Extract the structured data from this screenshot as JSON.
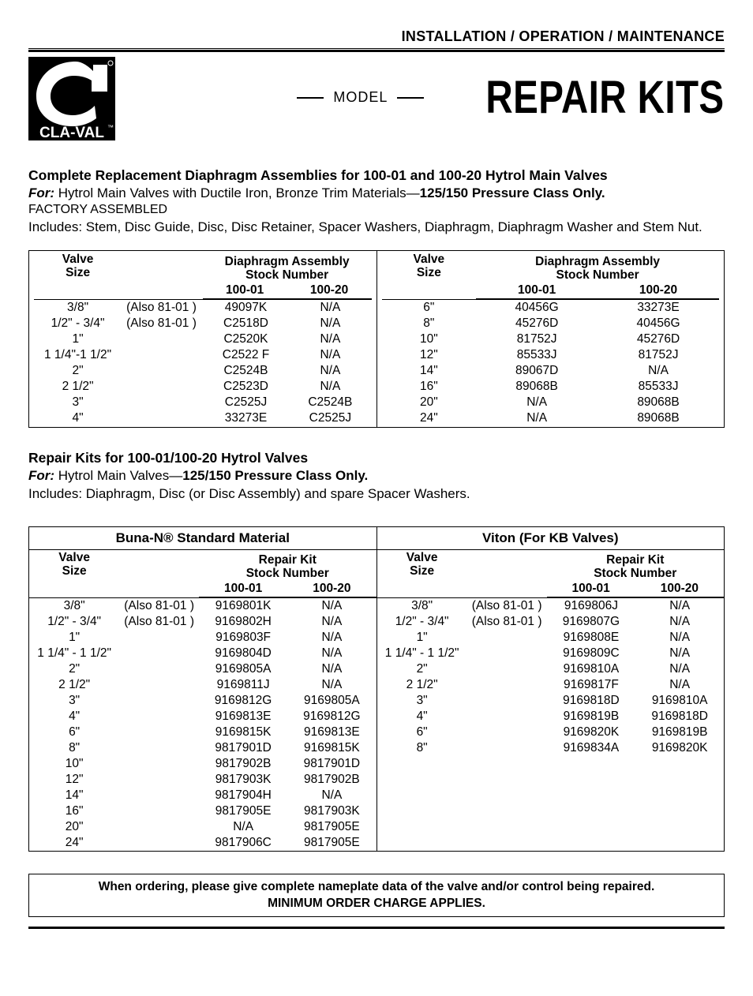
{
  "doc": {
    "top_heading": "INSTALLATION / OPERATION / MAINTENANCE",
    "model_word": "MODEL",
    "main_title": "REPAIR KITS",
    "logo_text": "CLA-VAL",
    "logo_bg": "#000000",
    "logo_fg": "#ffffff"
  },
  "section1": {
    "title": "Complete Replacement Diaphragm Assemblies for 100-01 and 100-20 Hytrol Main Valves",
    "for_prefix": "For:",
    "for_text": " Hytrol Main Valves with Ductile Iron, Bronze Trim Materials—",
    "for_bold_suffix": "125/150 Pressure Class Only.",
    "factory": "FACTORY ASSEMBLED",
    "includes": "Includes: Stem, Disc Guide, Disc, Disc Retainer, Spacer Washers, Diaphragm, Diaphragm Washer and Stem Nut.",
    "col_titles": {
      "valve_size": "Valve\nSize",
      "assembly": "Diaphragm Assembly\nStock Number",
      "c10001": "100-01",
      "c10020": "100-20"
    },
    "left_rows": [
      {
        "size": "3/8\"",
        "note": "(Also 81-01 )",
        "a": "49097K",
        "b": "N/A"
      },
      {
        "size": "1/2\" - 3/4\"",
        "note": "(Also 81-01 )",
        "a": "C2518D",
        "b": "N/A"
      },
      {
        "size": "1\"",
        "note": "",
        "a": "C2520K",
        "b": "N/A"
      },
      {
        "size": "1 1/4\"-1 1/2\"",
        "note": "",
        "a": "C2522 F",
        "b": "N/A"
      },
      {
        "size": "2\"",
        "note": "",
        "a": "C2524B",
        "b": "N/A"
      },
      {
        "size": "2 1/2\"",
        "note": "",
        "a": "C2523D",
        "b": "N/A"
      },
      {
        "size": "3\"",
        "note": "",
        "a": "C2525J",
        "b": "C2524B"
      },
      {
        "size": "4\"",
        "note": "",
        "a": "33273E",
        "b": "C2525J"
      }
    ],
    "right_rows": [
      {
        "size": "6\"",
        "a": "40456G",
        "b": "33273E"
      },
      {
        "size": "8\"",
        "a": "45276D",
        "b": "40456G"
      },
      {
        "size": "10\"",
        "a": "81752J",
        "b": "45276D"
      },
      {
        "size": "12\"",
        "a": "85533J",
        "b": "81752J"
      },
      {
        "size": "14\"",
        "a": "89067D",
        "b": "N/A"
      },
      {
        "size": "16\"",
        "a": "89068B",
        "b": "85533J"
      },
      {
        "size": "20\"",
        "a": "N/A",
        "b": "89068B"
      },
      {
        "size": "24\"",
        "a": "N/A",
        "b": "89068B"
      }
    ]
  },
  "section2": {
    "title": "Repair Kits for 100-01/100-20 Hytrol Valves",
    "for_prefix": "For:",
    "for_text": " Hytrol Main Valves—",
    "for_bold_suffix": "125/150 Pressure Class Only.",
    "includes": "Includes: Diaphragm, Disc (or Disc Assembly) and spare Spacer Washers.",
    "left_group_title": "Buna-N® Standard Material",
    "right_group_title": "Viton (For KB Valves)",
    "col_titles": {
      "valve_size": "Valve\nSize",
      "kit": "Repair Kit\nStock Number",
      "c10001": "100-01",
      "c10020": "100-20"
    },
    "left_rows": [
      {
        "size": "3/8\"",
        "note": "(Also 81-01 )",
        "a": "9169801K",
        "b": "N/A"
      },
      {
        "size": "1/2\" - 3/4\"",
        "note": "(Also 81-01 )",
        "a": "9169802H",
        "b": "N/A"
      },
      {
        "size": "1\"",
        "note": "",
        "a": "9169803F",
        "b": "N/A"
      },
      {
        "size": "1 1/4\" - 1 1/2\"",
        "note": "",
        "a": "9169804D",
        "b": "N/A"
      },
      {
        "size": "2\"",
        "note": "",
        "a": "9169805A",
        "b": "N/A"
      },
      {
        "size": "2 1/2\"",
        "note": "",
        "a": "9169811J",
        "b": "N/A"
      },
      {
        "size": "3\"",
        "note": "",
        "a": "9169812G",
        "b": "9169805A"
      },
      {
        "size": "4\"",
        "note": "",
        "a": "9169813E",
        "b": "9169812G"
      },
      {
        "size": "6\"",
        "note": "",
        "a": "9169815K",
        "b": "9169813E"
      },
      {
        "size": "8\"",
        "note": "",
        "a": "9817901D",
        "b": "9169815K"
      },
      {
        "size": "10\"",
        "note": "",
        "a": "9817902B",
        "b": "9817901D"
      },
      {
        "size": "12\"",
        "note": "",
        "a": "9817903K",
        "b": "9817902B"
      },
      {
        "size": "14\"",
        "note": "",
        "a": "9817904H",
        "b": "N/A"
      },
      {
        "size": "16\"",
        "note": "",
        "a": "9817905E",
        "b": "9817903K"
      },
      {
        "size": "20\"",
        "note": "",
        "a": "N/A",
        "b": "9817905E"
      },
      {
        "size": "24\"",
        "note": "",
        "a": "9817906C",
        "b": "9817905E"
      }
    ],
    "right_rows": [
      {
        "size": "3/8\"",
        "note": "(Also 81-01 )",
        "a": "9169806J",
        "b": "N/A"
      },
      {
        "size": "1/2\" - 3/4\"",
        "note": "(Also 81-01 )",
        "a": "9169807G",
        "b": "N/A"
      },
      {
        "size": "1\"",
        "note": "",
        "a": "9169808E",
        "b": "N/A"
      },
      {
        "size": "1 1/4\" - 1 1/2\"",
        "note": "",
        "a": "9169809C",
        "b": "N/A"
      },
      {
        "size": "2\"",
        "note": "",
        "a": "9169810A",
        "b": "N/A"
      },
      {
        "size": "2 1/2\"",
        "note": "",
        "a": "9169817F",
        "b": "N/A"
      },
      {
        "size": "3\"",
        "note": "",
        "a": "9169818D",
        "b": "9169810A"
      },
      {
        "size": "4\"",
        "note": "",
        "a": "9169819B",
        "b": "9169818D"
      },
      {
        "size": "6\"",
        "note": "",
        "a": "9169820K",
        "b": "9169819B"
      },
      {
        "size": "8\"",
        "note": "",
        "a": "9169834A",
        "b": "9169820K"
      }
    ]
  },
  "order_note": {
    "line1": "When ordering, please give complete nameplate data of the valve and/or control being repaired.",
    "line2": "MINIMUM ORDER CHARGE APPLIES."
  }
}
